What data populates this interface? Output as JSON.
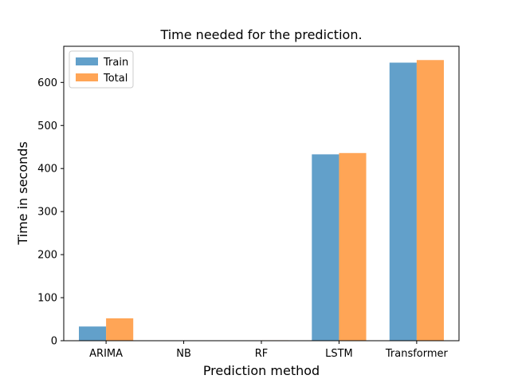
{
  "chart_data": {
    "type": "bar",
    "title": "Time needed for the prediction.",
    "xlabel": "Prediction method",
    "ylabel": "Time in seconds",
    "categories": [
      "ARIMA",
      "NB",
      "RF",
      "LSTM",
      "Transformer"
    ],
    "series": [
      {
        "name": "Train",
        "values": [
          33,
          0.2,
          0.5,
          433,
          646
        ],
        "color": "#1f77b4"
      },
      {
        "name": "Total",
        "values": [
          52,
          0.4,
          1.0,
          436,
          652
        ],
        "color": "#ff7f0e"
      }
    ],
    "bar_opacity": 0.7,
    "ylim": [
      0,
      684
    ],
    "yticks": [
      0,
      100,
      200,
      300,
      400,
      500,
      600
    ],
    "grid": false,
    "legend_position": "upper left"
  }
}
